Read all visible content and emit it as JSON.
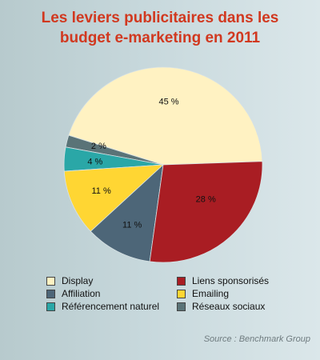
{
  "chart_data": {
    "type": "pie",
    "title_lines": [
      "Les leviers publicitaires dans les",
      "budget e-marketing en 2011"
    ],
    "slices": [
      {
        "label": "Display",
        "value": 45,
        "display_value": "45 %",
        "color": "#fff2c2"
      },
      {
        "label": "Réseaux sociaux",
        "value": 2,
        "display_value": "2 %",
        "color": "#5a7377"
      },
      {
        "label": "Référencement naturel",
        "value": 4,
        "display_value": "4 %",
        "color": "#2aa7a7"
      },
      {
        "label": "Emailing",
        "value": 11,
        "display_value": "11 %",
        "color": "#ffd633"
      },
      {
        "label": "Affiliation",
        "value": 11,
        "display_value": "11 %",
        "color": "#4d6678"
      },
      {
        "label": "Liens sponsorisés",
        "value": 28,
        "display_value": "28 %",
        "color": "#a91d23"
      }
    ],
    "legend": [
      {
        "label": "Display",
        "color": "#fff2c2"
      },
      {
        "label": "Liens sponsorisés",
        "color": "#a91d23"
      },
      {
        "label": "Affiliation",
        "color": "#4d6678"
      },
      {
        "label": "Emailing",
        "color": "#ffd633"
      },
      {
        "label": "Référencement naturel",
        "color": "#2aa7a7"
      },
      {
        "label": "Réseaux sociaux",
        "color": "#5a7377"
      }
    ],
    "legend_placement": "bottom",
    "grid": false,
    "source": "Source : Benchmark Group"
  }
}
